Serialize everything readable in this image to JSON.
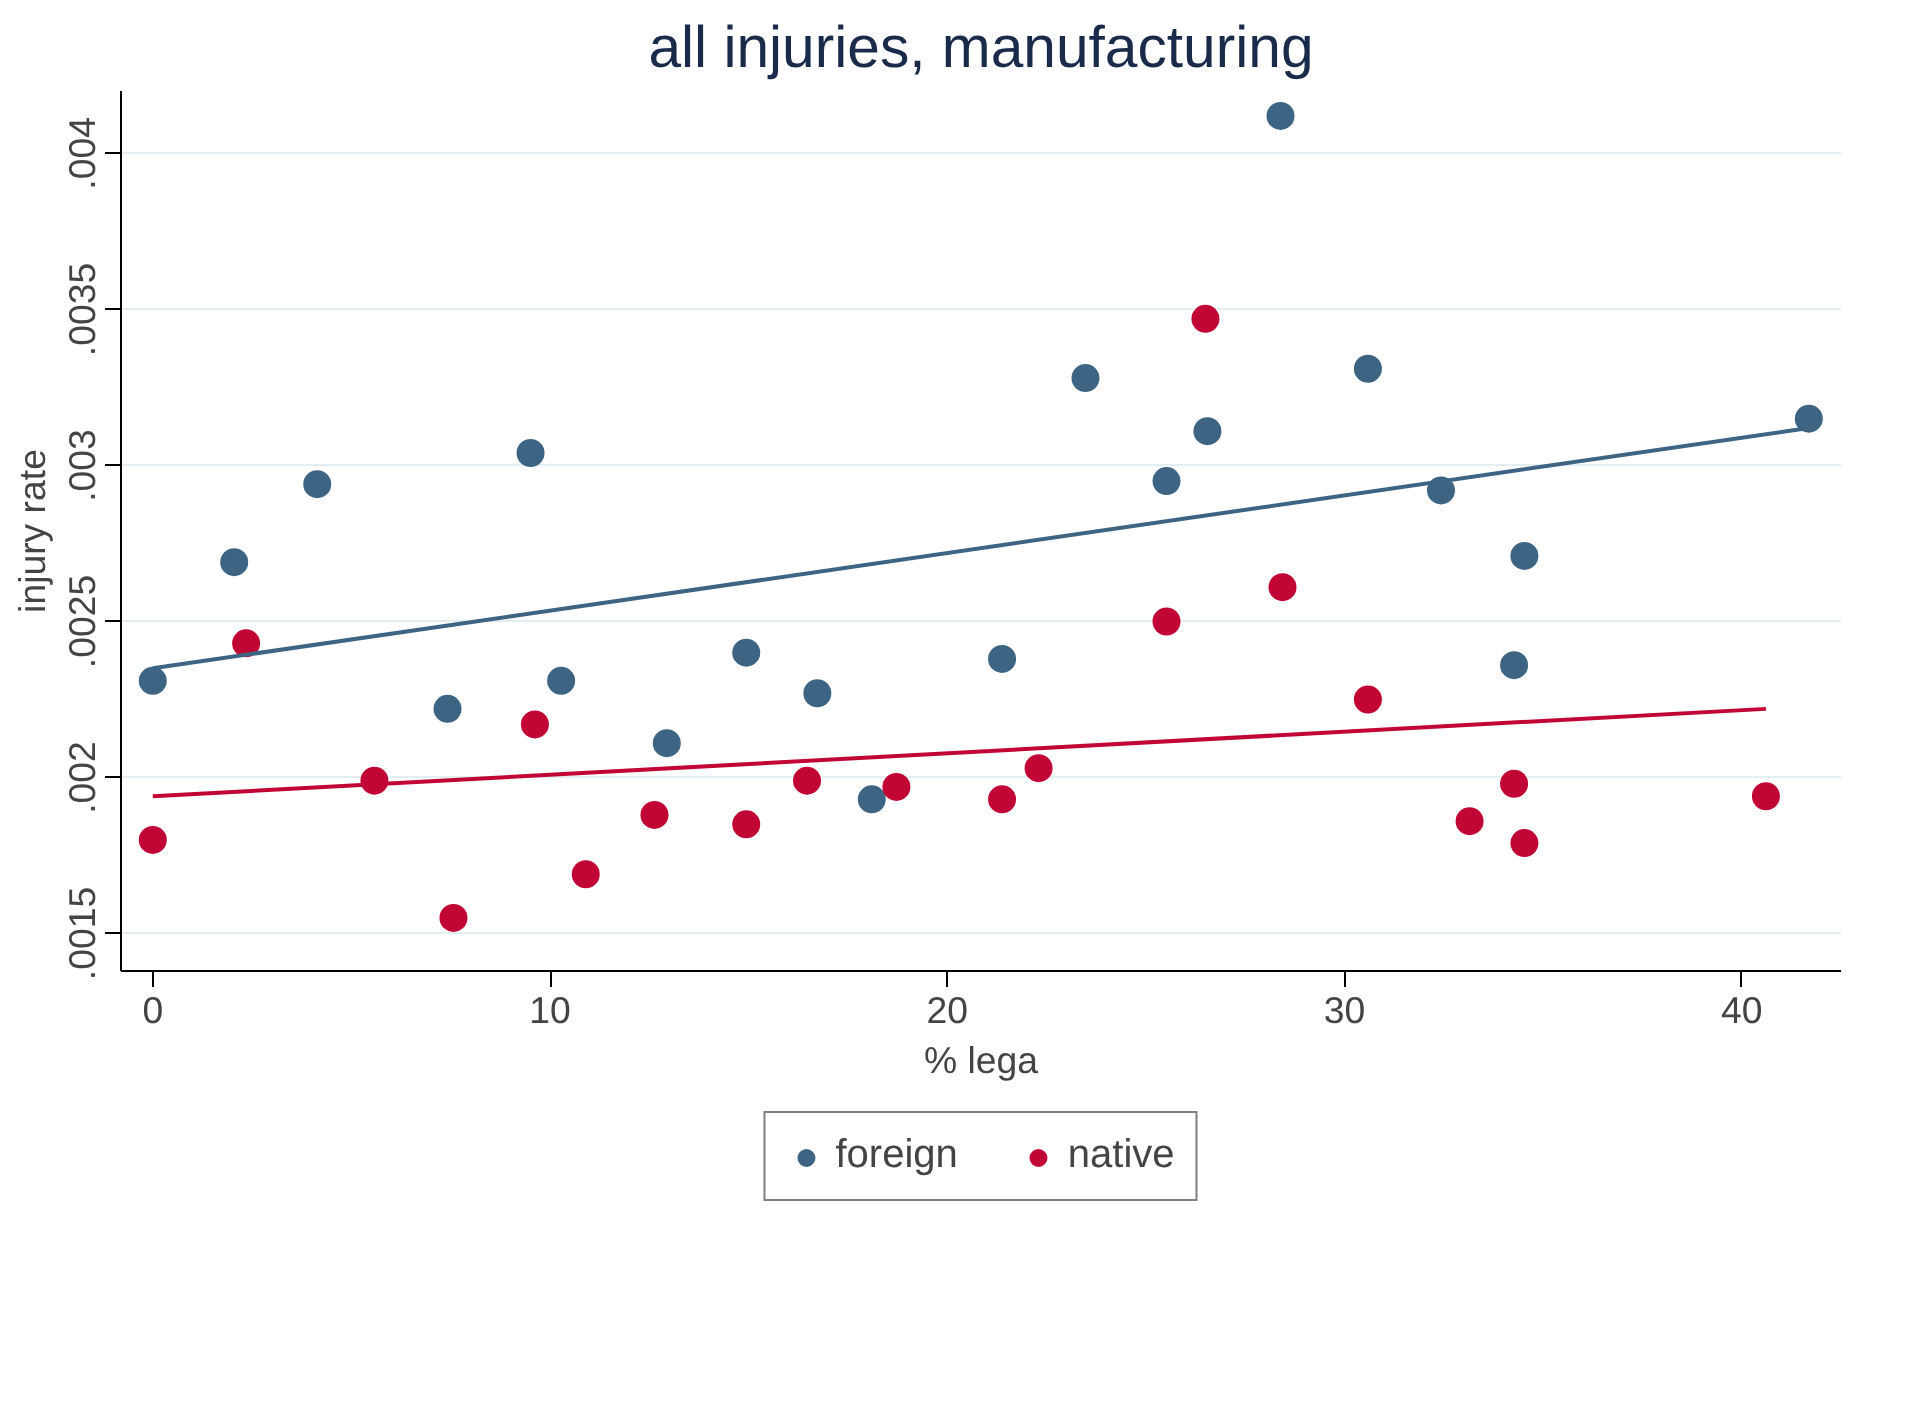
{
  "chart_data": {
    "type": "scatter",
    "title": "all injuries, manufacturing",
    "xlabel": "% lega",
    "ylabel": "injury rate",
    "xlim": [
      -0.8,
      42.5
    ],
    "ylim": [
      0.00138,
      0.0042
    ],
    "xticks": [
      0,
      10,
      20,
      30,
      40
    ],
    "yticks": [
      {
        "value": 0.0015,
        "label": ".0015"
      },
      {
        "value": 0.002,
        "label": ".002"
      },
      {
        "value": 0.0025,
        "label": ".0025"
      },
      {
        "value": 0.003,
        "label": ".003"
      },
      {
        "value": 0.0035,
        "label": ".0035"
      },
      {
        "value": 0.004,
        "label": ".004"
      }
    ],
    "grid": "y",
    "legend": "bottom",
    "marker": "circle",
    "series": [
      {
        "name": "foreign",
        "color": "#3d6583",
        "x": [
          0,
          2.05,
          4.14,
          7.42,
          9.51,
          10.28,
          12.94,
          14.94,
          16.73,
          18.1,
          21.38,
          23.48,
          25.52,
          26.55,
          28.39,
          30.59,
          32.43,
          34.53,
          34.27,
          41.69
        ],
        "values": [
          0.00231,
          0.00269,
          0.00294,
          0.00222,
          0.00304,
          0.00231,
          0.00211,
          0.0024,
          0.00227,
          0.00193,
          0.00238,
          0.00328,
          0.00295,
          0.00311,
          0.00412,
          0.00331,
          0.00292,
          0.00271,
          0.00236,
          0.00315
        ]
      },
      {
        "name": "native",
        "color": "#c10534",
        "x": [
          0,
          2.35,
          5.58,
          7.57,
          9.62,
          10.9,
          12.63,
          14.94,
          16.47,
          18.72,
          21.38,
          22.3,
          25.52,
          26.5,
          28.44,
          30.59,
          33.15,
          34.27,
          34.53,
          40.61
        ],
        "values": [
          0.0018,
          0.00243,
          0.00199,
          0.00155,
          0.00217,
          0.00169,
          0.00188,
          0.00185,
          0.00199,
          0.00197,
          0.00193,
          0.00203,
          0.0025,
          0.00347,
          0.00261,
          0.00225,
          0.00186,
          0.00198,
          0.00179,
          0.00194
        ]
      },
      {
        "type": "line",
        "marker": "none",
        "color": "#3d6583",
        "x": [
          0,
          41.69
        ],
        "values": [
          0.00235,
          0.00312
        ]
      },
      {
        "type": "line",
        "marker": "none",
        "color": "#c10534",
        "x": [
          0,
          40.61
        ],
        "values": [
          0.00194,
          0.00222
        ]
      }
    ]
  }
}
